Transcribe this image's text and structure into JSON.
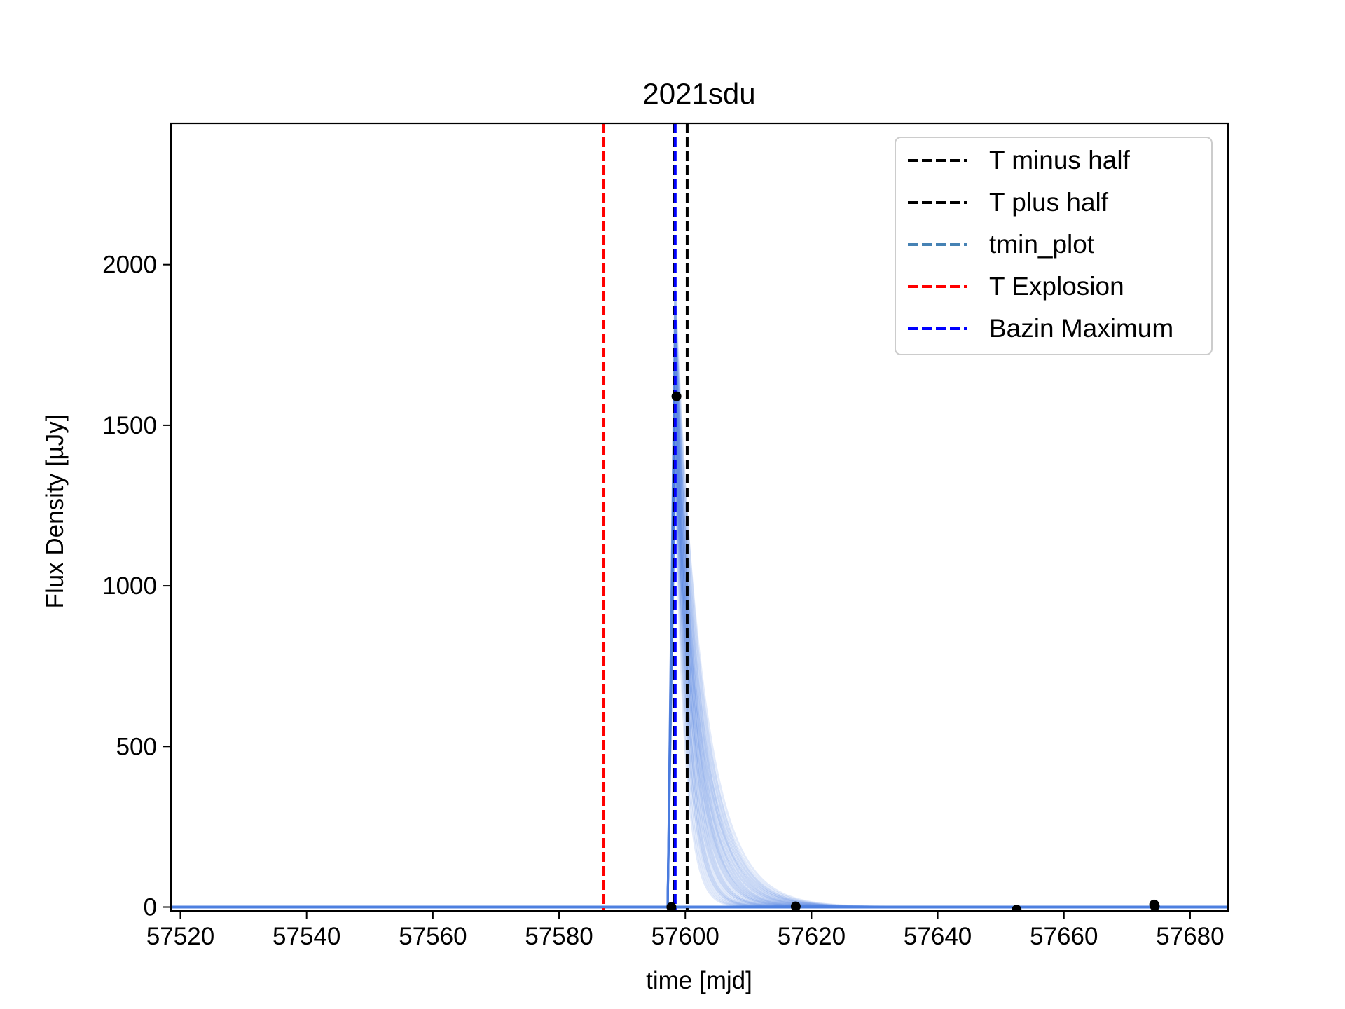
{
  "chart_data": {
    "type": "line",
    "title": "2021sdu",
    "xlabel": "time [mjd]",
    "ylabel": "Flux Density [µJy]",
    "xlim": [
      57518.5,
      57686
    ],
    "ylim": [
      -12,
      2440
    ],
    "xticks": [
      57520,
      57540,
      57560,
      57580,
      57600,
      57620,
      57640,
      57660,
      57680
    ],
    "xtick_labels": [
      "57520",
      "57540",
      "57560",
      "57580",
      "57600",
      "57620",
      "57640",
      "57660",
      "57680"
    ],
    "yticks": [
      0,
      500,
      1000,
      1500,
      2000
    ],
    "ytick_labels": [
      "0",
      "500",
      "1000",
      "1500",
      "2000"
    ],
    "grid": false,
    "legend_position": "top-right",
    "legend": [
      {
        "label": "T minus half",
        "color": "#000000",
        "style": "dashed"
      },
      {
        "label": "T plus half",
        "color": "#000000",
        "style": "dashed"
      },
      {
        "label": "tmin_plot",
        "color": "#4682b4",
        "style": "dashed"
      },
      {
        "label": "T Explosion",
        "color": "#ff0000",
        "style": "dashed"
      },
      {
        "label": "Bazin Maximum",
        "color": "#0000ff",
        "style": "dashed"
      }
    ],
    "vlines": [
      {
        "label": "T Explosion",
        "x": 57587.1,
        "color": "#ff0000"
      },
      {
        "label": "tmin_plot",
        "x": 57598.2,
        "color": "#4682b4"
      },
      {
        "label": "T minus half",
        "x": 57598.3,
        "color": "#000000"
      },
      {
        "label": "Bazin Maximum",
        "x": 57598.4,
        "color": "#0000ff"
      },
      {
        "label": "T plus half",
        "x": 57600.3,
        "color": "#000000"
      }
    ],
    "data_points": [
      {
        "x": 57597.8,
        "y": 0
      },
      {
        "x": 57598.6,
        "y": 1590
      },
      {
        "x": 57617.5,
        "y": 2
      },
      {
        "x": 57652.5,
        "y": -8
      },
      {
        "x": 57674.3,
        "y": 8
      },
      {
        "x": 57674.4,
        "y": 3
      }
    ],
    "model_curves": {
      "color": "#4c7fe0",
      "rise_start": 57597.2,
      "peak_time": 57598.4,
      "peak_flux_range": [
        1350,
        1950
      ],
      "decay_tau_range": [
        1.6,
        4.5
      ],
      "count": 40
    }
  }
}
